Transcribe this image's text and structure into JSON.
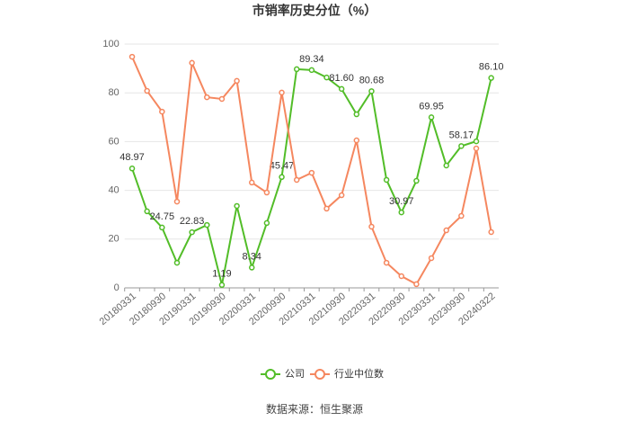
{
  "chart_data": {
    "type": "line",
    "title": "市销率历史分位（%）",
    "source": "数据来源：恒生聚源",
    "categories": [
      "20180331",
      null,
      "20180930",
      null,
      "20190331",
      null,
      "20190930",
      null,
      "20200331",
      null,
      "20200930",
      null,
      "20210331",
      null,
      "20210930",
      null,
      "20220331",
      null,
      "20220930",
      null,
      "20230331",
      null,
      "20230930",
      null,
      "20240322"
    ],
    "series": [
      {
        "name": "公司",
        "color": "#52bd28",
        "values": [
          48.97,
          31.4,
          24.75,
          10.3,
          22.83,
          25.8,
          1.19,
          33.6,
          8.34,
          26.6,
          45.47,
          89.7,
          89.34,
          86.3,
          81.6,
          71.2,
          80.68,
          44.3,
          30.97,
          43.9,
          69.95,
          50.2,
          58.17,
          60.1,
          86.1
        ],
        "value_labels": [
          "48.97",
          null,
          "24.75",
          null,
          "22.83",
          null,
          "1.19",
          null,
          "8.34",
          null,
          "45.47",
          null,
          "89.34",
          null,
          "81.60",
          null,
          "80.68",
          null,
          "30.97",
          null,
          "69.95",
          null,
          "58.17",
          null,
          "86.10"
        ]
      },
      {
        "name": "行业中位数",
        "color": "#f5875f",
        "values": [
          94.8,
          80.8,
          72.3,
          35.4,
          92.3,
          78.2,
          77.5,
          84.9,
          43.2,
          39.1,
          80.1,
          44.3,
          47.2,
          32.5,
          38.0,
          60.5,
          25.1,
          10.3,
          4.8,
          1.5,
          12.2,
          23.6,
          29.5,
          57.2,
          22.9
        ]
      }
    ],
    "ylim": [
      0,
      100
    ],
    "yticks": [
      0,
      20,
      40,
      60,
      80,
      100
    ],
    "grid": true
  }
}
